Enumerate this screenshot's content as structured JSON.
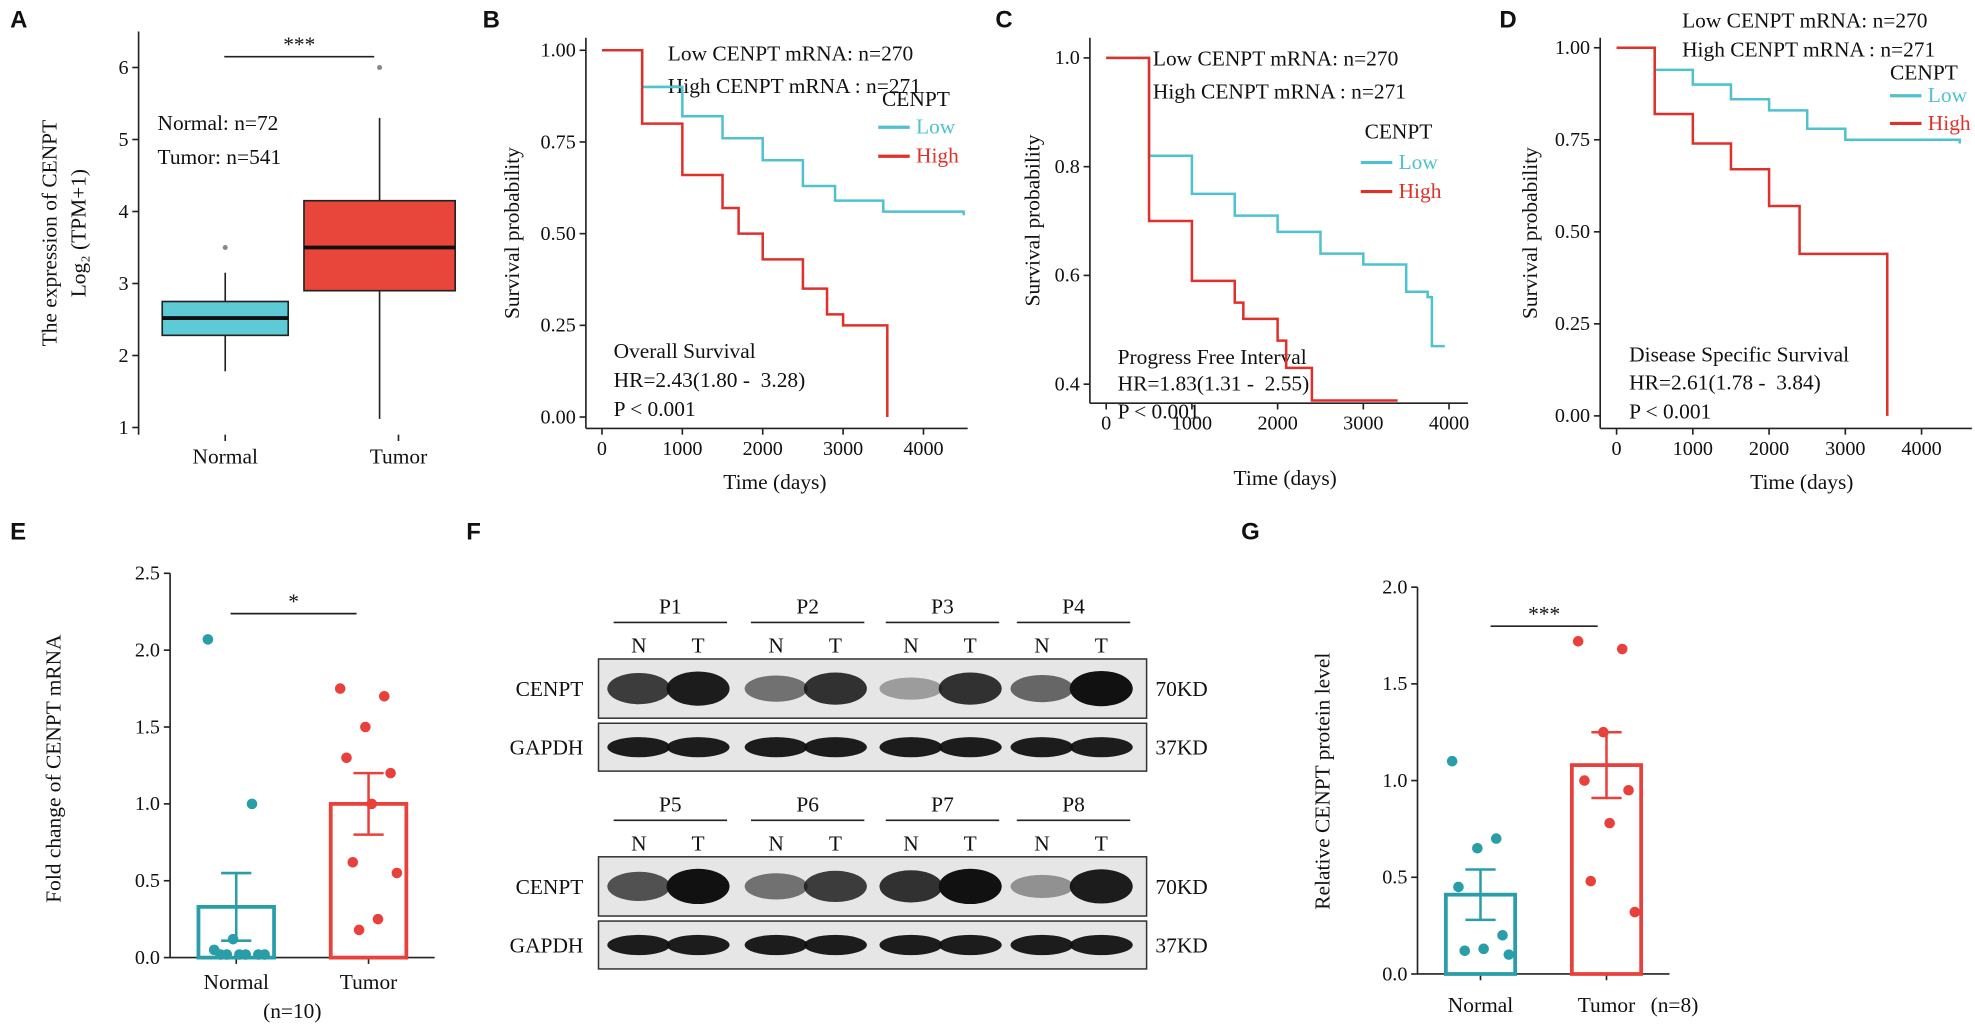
{
  "chart_data": [
    {
      "panel": "A",
      "type": "box",
      "y_label": [
        "The expression of CENPT",
        "Log₂ (TPM+1)"
      ],
      "categories": [
        "Normal",
        "Tumor"
      ],
      "boxes": [
        {
          "q1": 2.28,
          "median": 2.52,
          "q3": 2.75,
          "whisker_low": 1.78,
          "whisker_high": 3.15,
          "outliers": [
            3.5
          ]
        },
        {
          "q1": 2.9,
          "median": 3.5,
          "q3": 4.15,
          "whisker_low": 1.12,
          "whisker_high": 5.3,
          "outliers": [
            6.0
          ]
        }
      ],
      "colors": [
        "#5ccbd6",
        "#e8463a"
      ],
      "ylim": [
        0.9,
        6.5
      ],
      "yticks": [
        1,
        2,
        3,
        4,
        5,
        6
      ],
      "annotations": [
        "Normal: n=72",
        "Tumor: n=541"
      ],
      "significance": "***"
    },
    {
      "panel": "B",
      "type": "line",
      "y_label": "Survival probability",
      "x_label": "Time (days)",
      "legend_title": "CENPT",
      "series": [
        {
          "name": "Low",
          "color": "#4fc1cf",
          "x": [
            0,
            500,
            1000,
            1500,
            2000,
            2500,
            2900,
            3500,
            4500
          ],
          "values": [
            1,
            0.9,
            0.82,
            0.76,
            0.7,
            0.63,
            0.59,
            0.56,
            0.55
          ]
        },
        {
          "name": "High",
          "color": "#e0302a",
          "x": [
            0,
            500,
            1000,
            1500,
            1700,
            2000,
            2500,
            2800,
            3000,
            3500,
            3550
          ],
          "values": [
            1,
            0.8,
            0.66,
            0.57,
            0.5,
            0.43,
            0.35,
            0.28,
            0.25,
            0.25,
            0
          ]
        }
      ],
      "xlim": [
        -200,
        4550
      ],
      "xticks": [
        0,
        1000,
        2000,
        3000,
        4000
      ],
      "ylim": [
        -0.031,
        1.034
      ],
      "yticks": [
        {
          "value": 0,
          "label": "0.00"
        },
        {
          "value": 0.25,
          "label": "0.25"
        },
        {
          "value": 0.5,
          "label": "0.50"
        },
        {
          "value": 0.75,
          "label": "0.75"
        },
        {
          "value": 1,
          "label": "1.00"
        }
      ],
      "annotations": [
        "Low CENPT mRNA: n=270",
        "High CENPT mRNA : n=271",
        "Overall Survival",
        "HR=2.43(1.80 -  3.28)",
        "P < 0.001"
      ]
    },
    {
      "panel": "C",
      "type": "line",
      "y_label": "Survival probability",
      "x_label": "Time (days)",
      "legend_title": "CENPT",
      "series": [
        {
          "name": "Low",
          "color": "#4fc1cf",
          "x": [
            0,
            500,
            1000,
            1500,
            2000,
            2500,
            3000,
            3500,
            3750,
            3800,
            3950
          ],
          "values": [
            1,
            0.82,
            0.75,
            0.71,
            0.68,
            0.64,
            0.62,
            0.57,
            0.56,
            0.47,
            0.47
          ]
        },
        {
          "name": "High",
          "color": "#e0302a",
          "x": [
            0,
            500,
            1000,
            1500,
            1600,
            2000,
            2100,
            2400,
            3400
          ],
          "values": [
            1,
            0.7,
            0.59,
            0.55,
            0.52,
            0.48,
            0.43,
            0.37,
            0.37
          ]
        }
      ],
      "xlim": [
        -190,
        4220
      ],
      "xticks": [
        0,
        1000,
        2000,
        3000,
        4000
      ],
      "ylim": [
        0.365,
        1.037
      ],
      "yticks": [
        0.4,
        0.6,
        0.8,
        {
          "value": 1,
          "label": "1.0"
        }
      ],
      "annotations": [
        "Low CENPT mRNA: n=270",
        "High CENPT mRNA : n=271",
        "Progress Free Interval",
        "HR=1.83(1.31 -  2.55)",
        "P < 0.001"
      ]
    },
    {
      "panel": "D",
      "type": "line",
      "y_label": "Survival probability",
      "x_label": "Time (days)",
      "legend_title": "CENPT",
      "series": [
        {
          "name": "Low",
          "color": "#4fc1cf",
          "x": [
            0,
            500,
            1000,
            1500,
            2000,
            2500,
            3000,
            4500
          ],
          "values": [
            1,
            0.94,
            0.9,
            0.86,
            0.83,
            0.78,
            0.75,
            0.74
          ]
        },
        {
          "name": "High",
          "color": "#e0302a",
          "x": [
            0,
            500,
            1000,
            1500,
            2000,
            2400,
            3500,
            3550
          ],
          "values": [
            1,
            0.82,
            0.74,
            0.67,
            0.57,
            0.44,
            0.44,
            0
          ]
        }
      ],
      "xlim": [
        -215,
        4660
      ],
      "xticks": [
        0,
        1000,
        2000,
        3000,
        4000
      ],
      "ylim": [
        -0.034,
        1.027
      ],
      "yticks": [
        {
          "value": 0,
          "label": "0.00"
        },
        {
          "value": 0.25,
          "label": "0.25"
        },
        {
          "value": 0.5,
          "label": "0.50"
        },
        {
          "value": 0.75,
          "label": "0.75"
        },
        {
          "value": 1,
          "label": "1.00"
        }
      ],
      "annotations": [
        "Low CENPT mRNA: n=270",
        "High CENPT mRNA : n=271",
        "Disease Specific Survival",
        "HR=2.61(1.78 -  3.84)",
        "P < 0.001"
      ]
    },
    {
      "panel": "E",
      "type": "bar",
      "y_label": "Fold change of CENPT mRNA",
      "categories": [
        "Normal",
        "Tumor"
      ],
      "values": [
        0.33,
        1.0
      ],
      "errors": [
        0.22,
        0.2
      ],
      "points": [
        [
          2.07,
          1.0,
          0.12,
          0.05,
          0.02,
          0.02,
          0.02,
          0.02,
          0.02,
          0.02
        ],
        [
          1.75,
          1.7,
          1.5,
          1.3,
          1.2,
          1.0,
          0.62,
          0.55,
          0.25,
          0.18
        ]
      ],
      "colors": [
        "#2a9ea8",
        "#e8413c"
      ],
      "ylim": [
        0,
        2.5
      ],
      "yticks": [
        {
          "value": 0,
          "label": "0.0"
        },
        0.5,
        {
          "value": 1,
          "label": "1.0"
        },
        1.5,
        {
          "value": 2,
          "label": "2.0"
        },
        2.5
      ],
      "significance": "*",
      "note": "(n=10)"
    },
    {
      "panel": "G",
      "type": "bar",
      "y_label": "Relative CENPT protein level",
      "categories": [
        "Normal",
        "Tumor"
      ],
      "values": [
        0.41,
        1.08
      ],
      "errors": [
        0.13,
        0.17
      ],
      "points": [
        [
          1.1,
          0.7,
          0.65,
          0.45,
          0.2,
          0.13,
          0.12,
          0.1
        ],
        [
          1.72,
          1.68,
          1.25,
          1.0,
          0.95,
          0.78,
          0.48,
          0.32
        ]
      ],
      "colors": [
        "#2a9ea8",
        "#e8413c"
      ],
      "ylim": [
        0,
        2
      ],
      "yticks": [
        {
          "value": 0,
          "label": "0.0"
        },
        0.5,
        {
          "value": 1,
          "label": "1.0"
        },
        1.5,
        {
          "value": 2,
          "label": "2.0"
        }
      ],
      "significance": "***",
      "note": "(n=8)"
    }
  ],
  "blot": {
    "panel": "F",
    "groups": [
      "P1",
      "P2",
      "P3",
      "P4",
      "P5",
      "P6",
      "P7",
      "P8"
    ],
    "lanes": [
      "N",
      "T"
    ],
    "rows": [
      "CENPT",
      "GAPDH"
    ],
    "sizes": [
      "70KD",
      "37KD"
    ]
  }
}
